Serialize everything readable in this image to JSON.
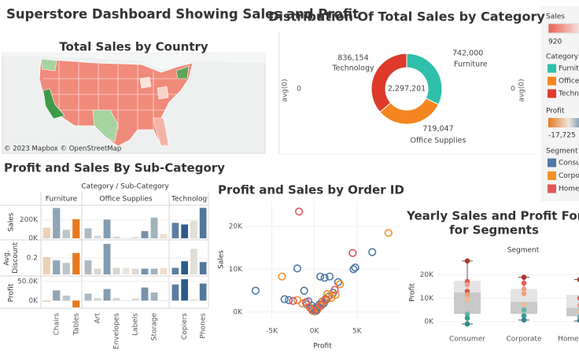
{
  "title": "Superstore Dashboard Showing Sales and Profit",
  "map": {
    "title": "Total Sales by Country",
    "attribution": "© 2023 Mapbox © OpenStreetMap"
  },
  "legends": {
    "sales": {
      "title": "Sales",
      "min": 920,
      "colors": [
        "#e8604f",
        "#f7f2f0",
        "#6bb164"
      ]
    },
    "category": {
      "title": "Category"
    },
    "profit": {
      "title": "Profit",
      "min": {
        "value": -17725,
        "label": "-17,725"
      }
    },
    "segment": {
      "title": "Segment"
    }
  },
  "chart_data": [
    {
      "type": "donut",
      "title": "Distribution Of Total Sales by Category",
      "categories": [
        "Furniture",
        "Office Supplies",
        "Technology"
      ],
      "values": [
        742000,
        719047,
        836154
      ],
      "value_labels": [
        "742,000",
        "719,047",
        "836,154"
      ],
      "colors": [
        "#2fbfaa",
        "#f5861f",
        "#dd3a2a"
      ],
      "total": {
        "value": 2297201,
        "label": "2,297,201"
      },
      "axis_label": "avg(0)",
      "yticks": [
        0
      ]
    },
    {
      "type": "bar-small-multiples",
      "title": "Profit and Sales By Sub-Category",
      "header": "Category / Sub-Category",
      "groups": [
        {
          "name": "Furniture",
          "categories": [
            null,
            "Chairs",
            null,
            "Tables"
          ]
        },
        {
          "name": "Office Supplies",
          "categories": [
            null,
            "Art",
            null,
            "Envelopes",
            null,
            "Labels",
            null,
            "Storage",
            null
          ]
        },
        {
          "name": "Technology",
          "categories": [
            null,
            "Copiers",
            null,
            "Phones"
          ]
        }
      ],
      "rows": [
        {
          "label": [
            "Sales"
          ],
          "values": [
            114880,
            328449,
            91705,
            206966,
            107532,
            27119,
            203413,
            16476,
            3024,
            12486,
            78479,
            223844,
            46674,
            167380,
            149528,
            189239,
            330007
          ],
          "ylim": [
            0,
            350000
          ],
          "yticks": [
            {
              "value": 0,
              "label": "0K"
            },
            {
              "value": 200000,
              "label": "200K"
            }
          ]
        },
        {
          "label": [
            "Avg.",
            "Discount"
          ],
          "values": [
            0.21,
            0.17,
            0.14,
            0.26,
            0.17,
            0.07,
            0.37,
            0.08,
            0.08,
            0.07,
            0.07,
            0.07,
            0.08,
            0.08,
            0.16,
            0.31,
            0.15
          ],
          "ylim": [
            0,
            0.4
          ],
          "yticks": [
            0.2
          ]
        },
        {
          "label": [
            "Profit"
          ],
          "values": [
            -3473,
            26590,
            13059,
            -17725,
            18138,
            6528,
            30222,
            6964,
            950,
            5546,
            34054,
            21279,
            -1189,
            41937,
            55618,
            3385,
            44516
          ],
          "ylim": [
            -20000,
            60000
          ],
          "yticks": [
            {
              "value": 0,
              "label": "0K"
            },
            {
              "value": 50000,
              "label": "50.0K"
            }
          ]
        }
      ],
      "color_by": "Profit",
      "color_scale": {
        "negative": "#e8791f",
        "neutral": "#ece6dc",
        "positive": "#2b5d8c"
      }
    },
    {
      "type": "scatter",
      "title": "Profit and Sales by Order ID",
      "xlabel": "Profit",
      "ylabel": "Sales",
      "xlim": [
        -8000,
        10200
      ],
      "ylim": [
        -1500,
        25700
      ],
      "xticks": [
        {
          "value": -5000,
          "label": "-5K"
        },
        {
          "value": 0,
          "label": "0K"
        },
        {
          "value": 5000,
          "label": "5K"
        }
      ],
      "yticks": [
        {
          "value": 0,
          "label": "0K"
        },
        {
          "value": 10000,
          "label": "10K"
        },
        {
          "value": 20000,
          "label": "20K"
        }
      ],
      "grid": true,
      "series": [
        {
          "name": "Consumer",
          "color": "#4e79a7",
          "x": [
            -6900,
            -2000,
            6800,
            4800,
            4600,
            700,
            1200,
            1800,
            2800,
            -3500,
            -3000,
            -1200,
            2200,
            -700,
            -300,
            0,
            200,
            400,
            600,
            900,
            1300,
            1600,
            -900,
            -500,
            100,
            300,
            500,
            800,
            1100,
            -200,
            50,
            250
          ],
          "values": [
            5000,
            10200,
            14000,
            10400,
            10000,
            8300,
            8000,
            8300,
            7000,
            3000,
            2800,
            5000,
            4500,
            2500,
            1500,
            500,
            800,
            1300,
            1800,
            2400,
            3000,
            3500,
            1800,
            1000,
            200,
            400,
            1000,
            1500,
            2000,
            300,
            900,
            600
          ]
        },
        {
          "name": "Corporate",
          "color": "#f28e2b",
          "x": [
            8700,
            -3800,
            3000,
            -2000,
            1500,
            2000,
            700,
            1000,
            -600,
            -100,
            400,
            1800,
            2500,
            -1400
          ],
          "values": [
            18500,
            8300,
            6500,
            2800,
            4200,
            3300,
            1600,
            2600,
            1200,
            200,
            700,
            3800,
            4000,
            2000
          ]
        },
        {
          "name": "Home Office",
          "color": "#e15759",
          "x": [
            -1800,
            4500,
            -2500,
            -1000,
            300,
            900,
            1400,
            -300,
            2400
          ],
          "values": [
            23500,
            13800,
            2600,
            2300,
            600,
            1900,
            2900,
            700,
            5200
          ]
        }
      ]
    },
    {
      "type": "box",
      "title": [
        "Yearly Sales and Profit Forecast",
        "for Segments"
      ],
      "header": "Segment",
      "ylabel": "Profit",
      "categories": [
        "Consumer",
        "Corporate",
        "Home Office"
      ],
      "ylim": [
        -3700,
        28300
      ],
      "yticks": [
        {
          "value": 0,
          "label": "0K"
        },
        {
          "value": 10000,
          "label": "10K"
        },
        {
          "value": 20000,
          "label": "20K"
        }
      ],
      "box_colors": [
        "#c9c9c9",
        "#e4e4e4"
      ],
      "whisker_color": "#555555",
      "boxes": [
        {
          "min": -1000,
          "q1": 3300,
          "median": 12500,
          "q3": 17500,
          "max": 26000,
          "points": [
            26000,
            17200,
            15800,
            13000,
            11500,
            9500,
            3200,
            1500,
            -1000
          ],
          "point_colors": [
            "#b1332b",
            "#e45a4f",
            "#f19c8c",
            "#d9594c",
            "#f0a07d",
            "#f3b98f",
            "#5fb3a8",
            "#3a9d93",
            "#2a8c8c"
          ]
        },
        {
          "min": 700,
          "q1": 3300,
          "median": 8500,
          "q3": 14000,
          "max": 19000,
          "points": [
            19000,
            16500,
            14000,
            12000,
            7500,
            5000,
            2500,
            700
          ],
          "point_colors": [
            "#b1332b",
            "#e45a4f",
            "#f19c8c",
            "#f0a07d",
            "#f3b98f",
            "#5fb3a8",
            "#3a9d93",
            "#2a8c8c"
          ]
        },
        {
          "min": 300,
          "q1": 2300,
          "median": 6000,
          "q3": 11500,
          "max": 18000,
          "points": [
            18000,
            10000,
            7000,
            4500,
            2000,
            500
          ],
          "point_colors": [
            "#b1332b",
            "#e45a4f",
            "#f0a07d",
            "#f3b98f",
            "#5fb3a8",
            "#2a8c8c"
          ]
        }
      ]
    }
  ]
}
